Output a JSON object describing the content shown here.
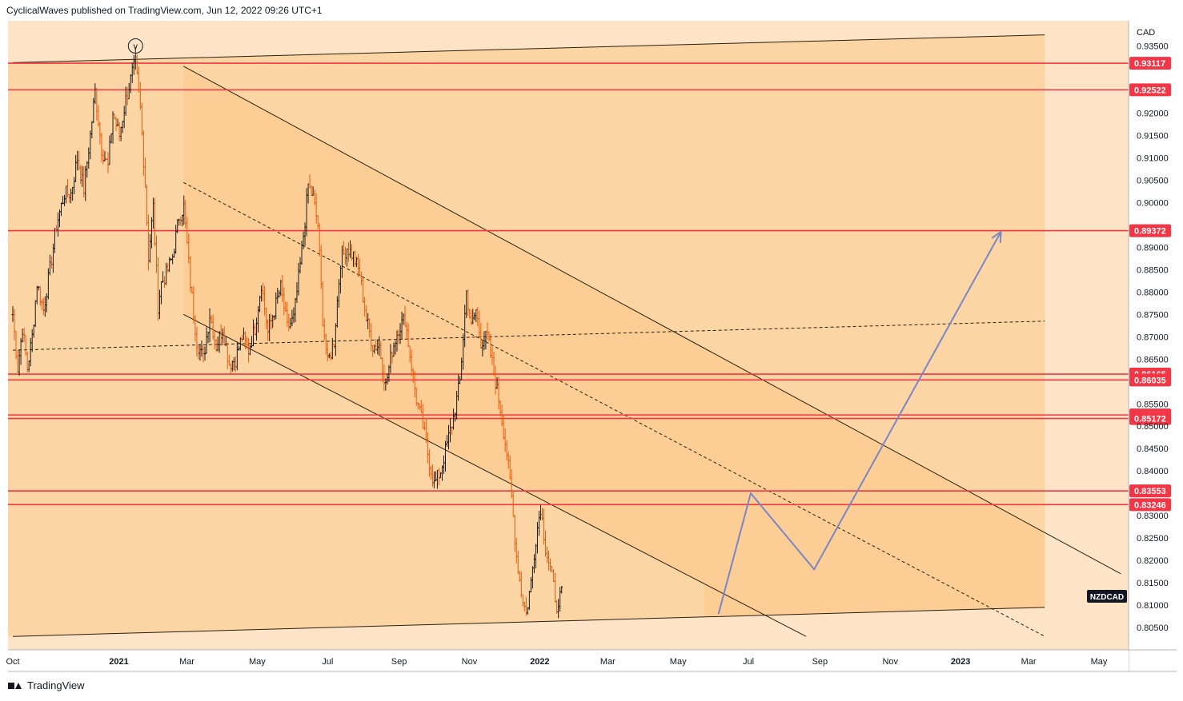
{
  "header": {
    "text": "CyclicalWaves published on TradingView.com, Jun 12, 2022 09:26 UTC+1"
  },
  "footer": {
    "brand": "TradingView"
  },
  "chart_data": {
    "type": "candlestick",
    "symbol": "NZDCAD",
    "currency": "CAD",
    "wave_label": "v",
    "x_ticks": [
      "Oct",
      "2021",
      "Mar",
      "May",
      "Jul",
      "Sep",
      "Nov",
      "2022",
      "Mar",
      "May",
      "Jul",
      "Sep",
      "Nov",
      "2023",
      "Mar",
      "May"
    ],
    "y_ticks": [
      "0.93500",
      "0.93000",
      "0.92500",
      "0.92000",
      "0.91500",
      "0.91000",
      "0.90500",
      "0.90000",
      "0.89500",
      "0.89000",
      "0.88500",
      "0.88000",
      "0.87500",
      "0.87000",
      "0.86500",
      "0.86000",
      "0.85500",
      "0.85000",
      "0.84500",
      "0.84000",
      "0.83500",
      "0.83000",
      "0.82500",
      "0.82000",
      "0.81500",
      "0.81000",
      "0.80500"
    ],
    "ylim": [
      0.801,
      0.9385
    ],
    "horizontal_levels": [
      "0.93117",
      "0.92522",
      "0.89372",
      "0.86165",
      "0.86035",
      "0.85252",
      "0.85172",
      "0.83553",
      "0.83246"
    ],
    "price_path": [
      [
        0,
        0.875
      ],
      [
        3,
        0.863
      ],
      [
        6,
        0.872
      ],
      [
        9,
        0.863
      ],
      [
        12,
        0.87
      ],
      [
        15,
        0.882
      ],
      [
        19,
        0.876
      ],
      [
        23,
        0.885
      ],
      [
        27,
        0.895
      ],
      [
        32,
        0.902
      ],
      [
        36,
        0.902
      ],
      [
        40,
        0.91
      ],
      [
        44,
        0.903
      ],
      [
        48,
        0.915
      ],
      [
        51,
        0.925
      ],
      [
        55,
        0.912
      ],
      [
        59,
        0.908
      ],
      [
        62,
        0.92
      ],
      [
        66,
        0.915
      ],
      [
        70,
        0.923
      ],
      [
        74,
        0.929
      ],
      [
        76,
        0.9311
      ],
      [
        79,
        0.921
      ],
      [
        82,
        0.904
      ],
      [
        84,
        0.888
      ],
      [
        87,
        0.899
      ],
      [
        90,
        0.877
      ],
      [
        92,
        0.882
      ],
      [
        95,
        0.884
      ],
      [
        99,
        0.888
      ],
      [
        103,
        0.897
      ],
      [
        106,
        0.899
      ],
      [
        110,
        0.882
      ],
      [
        114,
        0.869
      ],
      [
        118,
        0.865
      ],
      [
        122,
        0.875
      ],
      [
        126,
        0.868
      ],
      [
        130,
        0.872
      ],
      [
        134,
        0.864
      ],
      [
        138,
        0.865
      ],
      [
        142,
        0.87
      ],
      [
        146,
        0.867
      ],
      [
        150,
        0.872
      ],
      [
        154,
        0.882
      ],
      [
        158,
        0.871
      ],
      [
        162,
        0.876
      ],
      [
        166,
        0.881
      ],
      [
        170,
        0.872
      ],
      [
        174,
        0.874
      ],
      [
        178,
        0.886
      ],
      [
        181,
        0.896
      ],
      [
        183,
        0.904
      ],
      [
        186,
        0.901
      ],
      [
        189,
        0.895
      ],
      [
        192,
        0.874
      ],
      [
        195,
        0.864
      ],
      [
        199,
        0.869
      ],
      [
        203,
        0.887
      ],
      [
        207,
        0.89
      ],
      [
        211,
        0.888
      ],
      [
        215,
        0.884
      ],
      [
        219,
        0.874
      ],
      [
        223,
        0.868
      ],
      [
        227,
        0.868
      ],
      [
        231,
        0.859
      ],
      [
        235,
        0.867
      ],
      [
        239,
        0.872
      ],
      [
        243,
        0.874
      ],
      [
        246,
        0.866
      ],
      [
        250,
        0.856
      ],
      [
        254,
        0.85
      ],
      [
        258,
        0.842
      ],
      [
        261,
        0.837
      ],
      [
        265,
        0.84
      ],
      [
        269,
        0.846
      ],
      [
        273,
        0.852
      ],
      [
        277,
        0.86
      ],
      [
        281,
        0.88
      ],
      [
        284,
        0.872
      ],
      [
        287,
        0.876
      ],
      [
        290,
        0.869
      ],
      [
        294,
        0.87
      ],
      [
        298,
        0.862
      ],
      [
        302,
        0.854
      ],
      [
        306,
        0.844
      ],
      [
        309,
        0.834
      ],
      [
        312,
        0.821
      ],
      [
        315,
        0.813
      ],
      [
        318,
        0.808
      ],
      [
        321,
        0.815
      ],
      [
        324,
        0.825
      ],
      [
        327,
        0.832
      ],
      [
        330,
        0.823
      ],
      [
        333,
        0.818
      ],
      [
        336,
        0.812
      ],
      [
        338,
        0.8085
      ],
      [
        340,
        0.814
      ]
    ],
    "price_path_x_unit": "trading days since the Oct tick (axis shows Oct … May)",
    "projection_path": [
      [
        "2022-06-05",
        0.808
      ],
      [
        "2022-07-03",
        0.835
      ],
      [
        "2022-08-27",
        0.818
      ],
      [
        "2023-02-05",
        0.8935
      ]
    ],
    "channels": [
      {
        "name": "outer-upper",
        "from": [
          "Oct",
          0.9313
        ],
        "to": [
          "2023-03-15",
          0.9375
        ]
      },
      {
        "name": "outer-lower",
        "from": [
          "Oct",
          0.803
        ],
        "to": [
          "2023-03-15",
          0.8095
        ]
      },
      {
        "name": "mid-dashed",
        "from": [
          "Oct",
          0.867
        ],
        "to": [
          "2023-03-15",
          0.8735
        ]
      },
      {
        "name": "desc-upper",
        "from": [
          "2021-02-26",
          0.9305
        ],
        "to": [
          "2023-05-20",
          0.817
        ]
      },
      {
        "name": "desc-lower",
        "from": [
          "2021-02-26",
          0.875
        ],
        "to": [
          "2022-08-20",
          0.803
        ]
      },
      {
        "name": "desc-mid-dashed",
        "from": [
          "2021-02-26",
          0.9045
        ],
        "to": [
          "2023-03-15",
          0.803
        ]
      }
    ],
    "colors": {
      "background": "#fde4c6",
      "channel_fill": "#fbc98a",
      "level_line": "#f23645",
      "projection": "#7c85c4",
      "candle_up": "#1a1a1a",
      "candle_down": "#e8590c"
    }
  }
}
